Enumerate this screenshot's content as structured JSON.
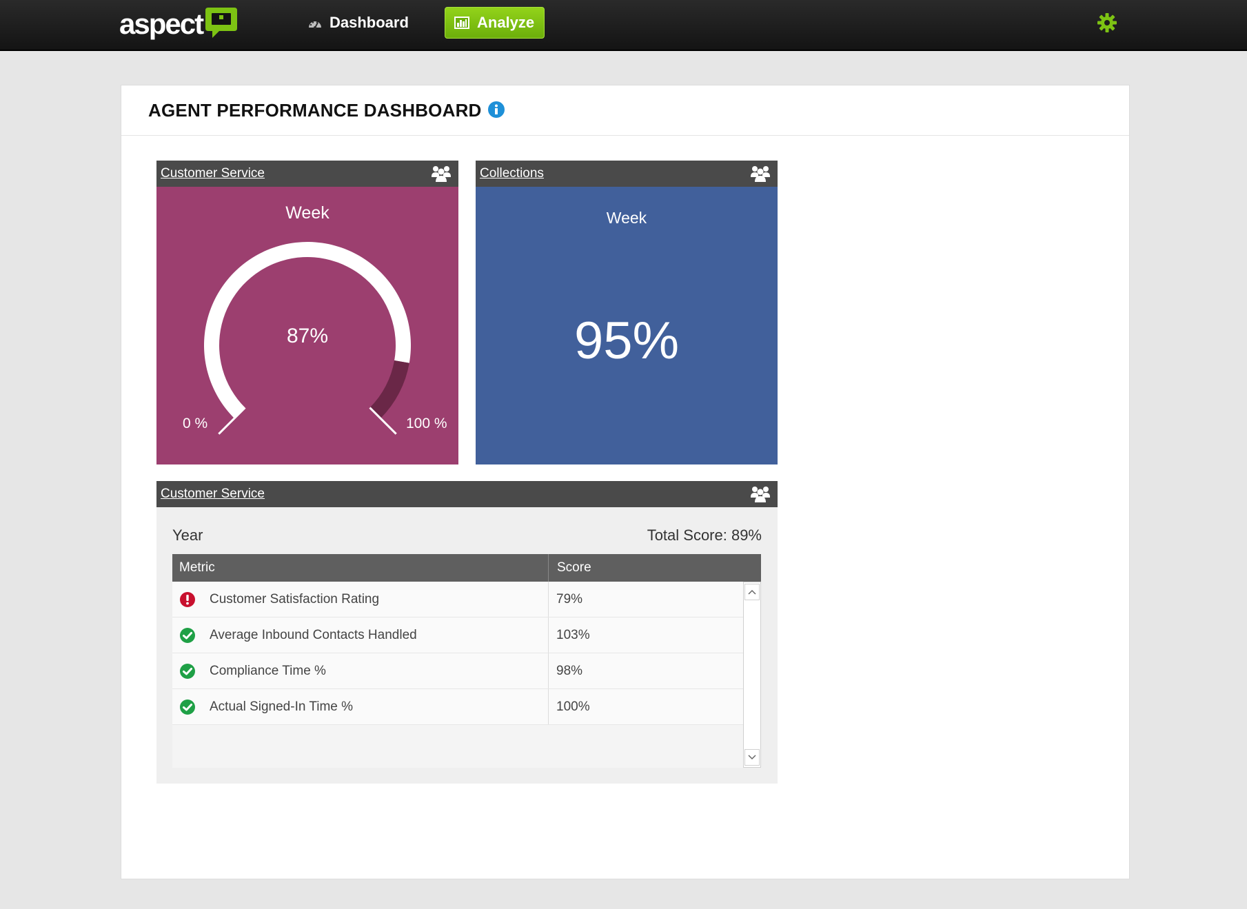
{
  "header": {
    "logo_text": "aspect",
    "nav": {
      "dashboard_label": "Dashboard",
      "analyze_label": "Analyze"
    },
    "settings_icon": "gear-icon",
    "accent_color": "#7dc313"
  },
  "page": {
    "title": "AGENT PERFORMANCE DASHBOARD",
    "info_icon": "info-icon"
  },
  "widgets": {
    "customer_service_gauge": {
      "title": "Customer Service",
      "period": "Week",
      "value_label": "87%",
      "value": 87,
      "min_label": "0 %",
      "max_label": "100 %",
      "color": "#9c3f6f"
    },
    "collections": {
      "title": "Collections",
      "period": "Week",
      "value_label": "95%",
      "color": "#41609b"
    },
    "customer_service_table": {
      "title": "Customer Service",
      "period": "Year",
      "total_score": "Total Score: 89%",
      "columns": [
        "Metric",
        "Score"
      ],
      "rows": [
        {
          "status": "error",
          "metric": "Customer Satisfaction Rating",
          "score": "79%"
        },
        {
          "status": "ok",
          "metric": "Average Inbound Contacts Handled",
          "score": "103%"
        },
        {
          "status": "ok",
          "metric": "Compliance Time %",
          "score": "98%"
        },
        {
          "status": "ok",
          "metric": "Actual Signed-In Time %",
          "score": "100%"
        }
      ]
    }
  }
}
